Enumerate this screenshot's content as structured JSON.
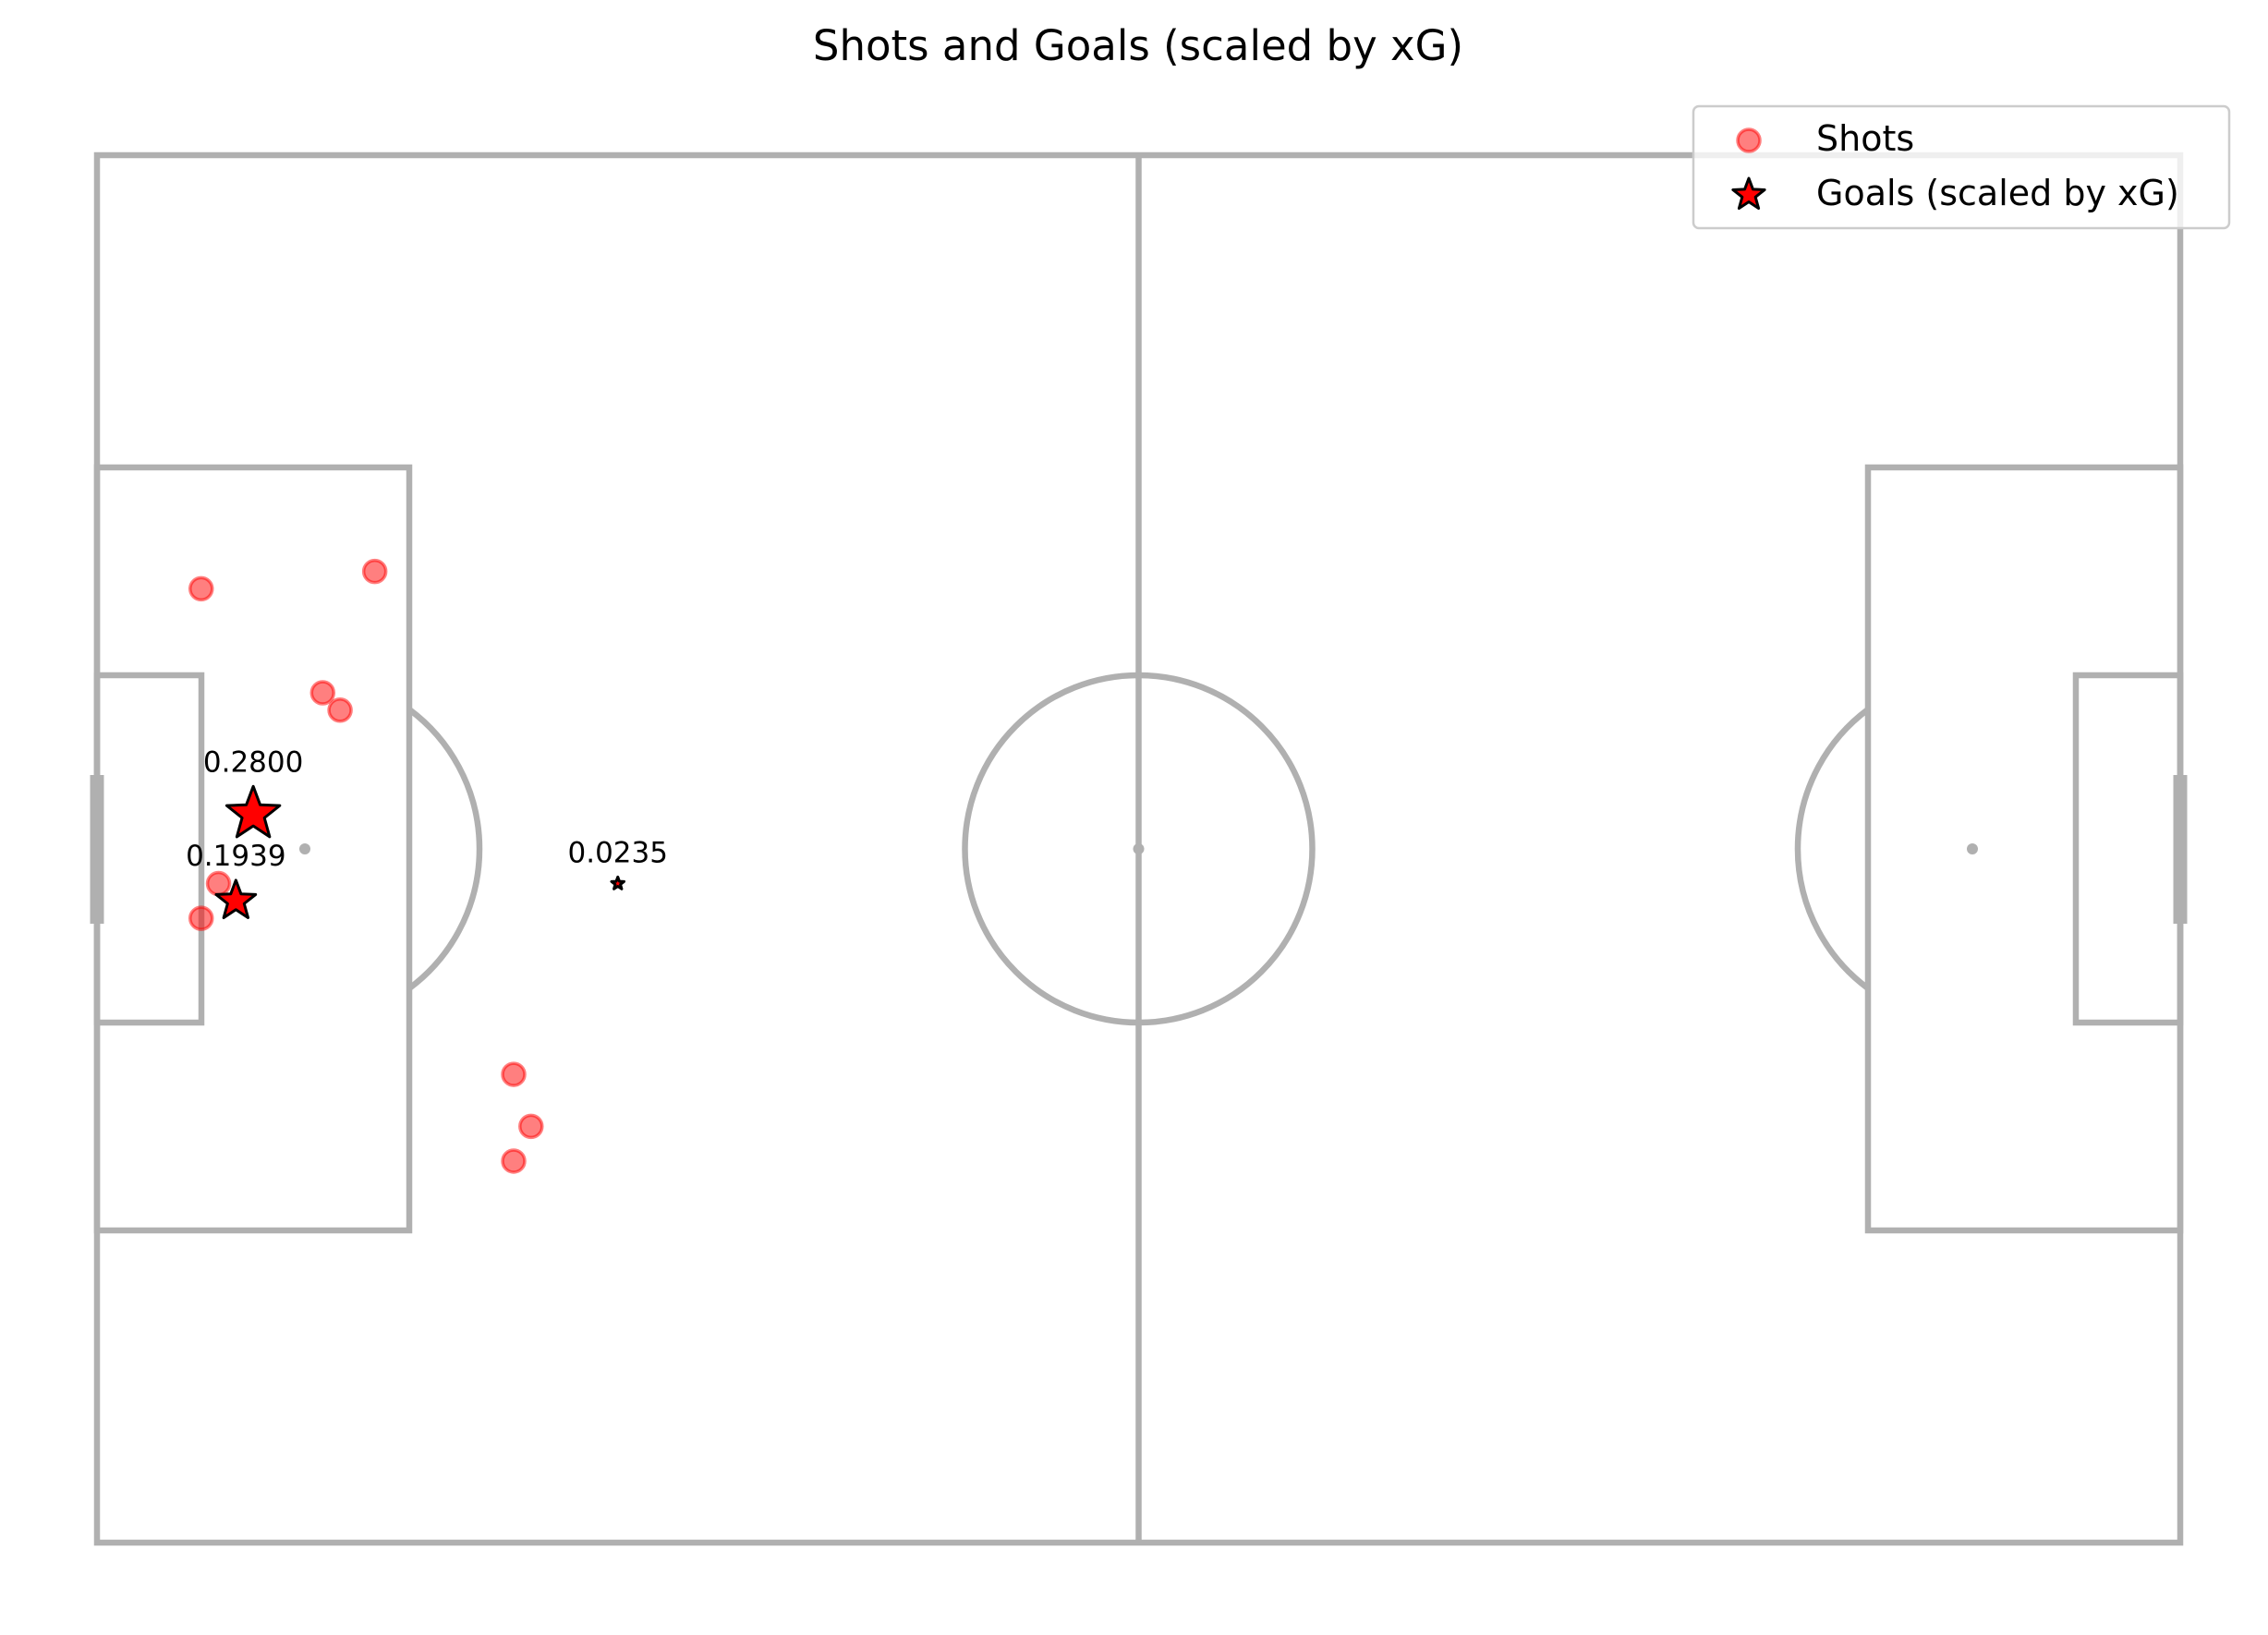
{
  "chart_data": {
    "type": "scatter",
    "title": "Shots and Goals (scaled by xG)",
    "pitch": {
      "length": 120,
      "width": 80,
      "units": "yards",
      "line_color": "#b0b0b0"
    },
    "x_range": [
      0,
      120
    ],
    "y_range": [
      0,
      80
    ],
    "grid": false,
    "legend_placement": "top-right",
    "series": [
      {
        "name": "Shots",
        "marker": "circle",
        "color": "#ff0000",
        "points": [
          {
            "x": 6.0,
            "y": 25.0
          },
          {
            "x": 16.0,
            "y": 24.0
          },
          {
            "x": 13.0,
            "y": 31.0
          },
          {
            "x": 14.0,
            "y": 32.0
          },
          {
            "x": 7.0,
            "y": 42.0
          },
          {
            "x": 6.0,
            "y": 44.0
          },
          {
            "x": 24.0,
            "y": 53.0
          },
          {
            "x": 25.0,
            "y": 56.0
          },
          {
            "x": 24.0,
            "y": 58.0
          }
        ]
      },
      {
        "name": "Goals (scaled by xG)",
        "marker": "star",
        "color": "#ff0000",
        "edge_color": "#000000",
        "points": [
          {
            "x": 9.0,
            "y": 38.0,
            "xg": 0.28,
            "label": "0.2800"
          },
          {
            "x": 8.0,
            "y": 43.0,
            "xg": 0.1939,
            "label": "0.1939"
          },
          {
            "x": 30.0,
            "y": 42.0,
            "xg": 0.0235,
            "label": "0.0235"
          }
        ]
      }
    ]
  }
}
